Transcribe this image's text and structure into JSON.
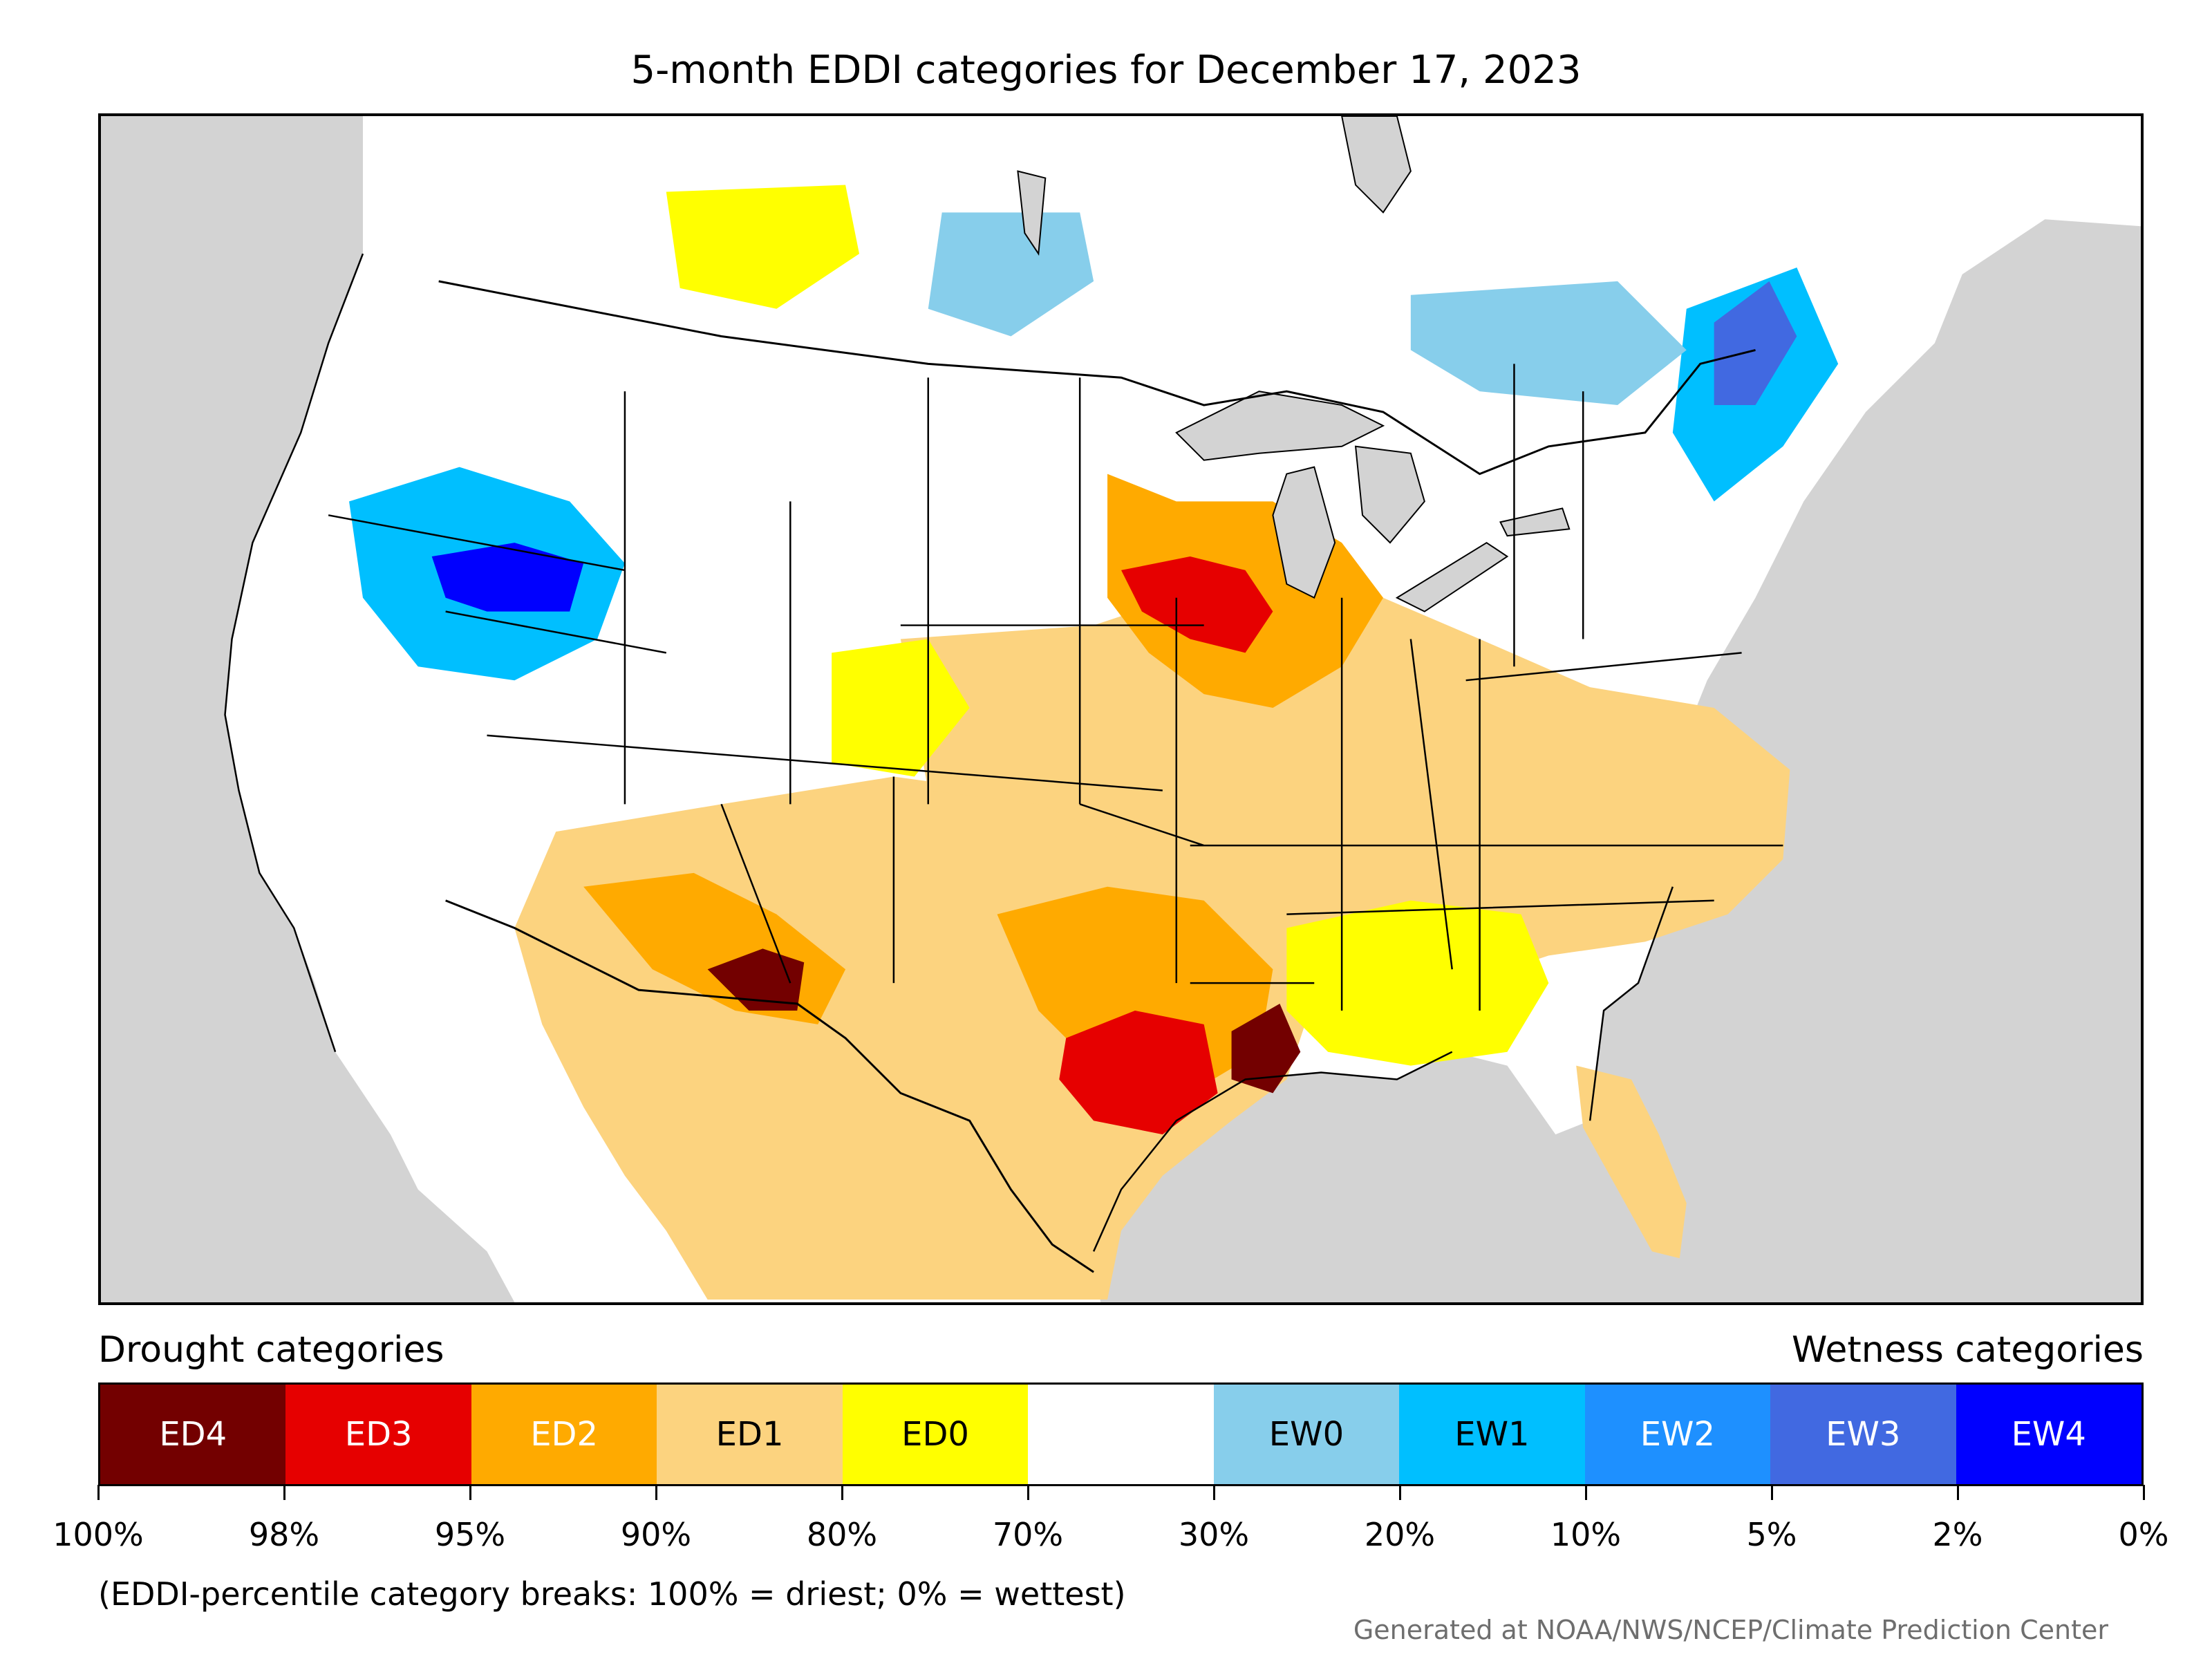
{
  "title": "5-month EDDI categories for December 17, 2023",
  "map": {
    "region": "Contiguous United States with parts of Canada and Mexico",
    "colors": {
      "background": "#d3d3d3",
      "land_neutral": "#ffffff",
      "water": "#d3d3d3",
      "borders": "#000000"
    }
  },
  "legend": {
    "left_heading": "Drought categories",
    "right_heading": "Wetness categories",
    "categories": [
      {
        "label": "ED4",
        "color": "#730000",
        "text_color": "#ffffff"
      },
      {
        "label": "ED3",
        "color": "#e60000",
        "text_color": "#ffffff"
      },
      {
        "label": "ED2",
        "color": "#ffaa00",
        "text_color": "#ffffff"
      },
      {
        "label": "ED1",
        "color": "#fcd37f",
        "text_color": "#000000"
      },
      {
        "label": "ED0",
        "color": "#ffff00",
        "text_color": "#000000"
      },
      {
        "label": "",
        "color": "#ffffff",
        "text_color": "#000000"
      },
      {
        "label": "EW0",
        "color": "#87ceeb",
        "text_color": "#000000"
      },
      {
        "label": "EW1",
        "color": "#00bfff",
        "text_color": "#000000"
      },
      {
        "label": "EW2",
        "color": "#1e90ff",
        "text_color": "#ffffff"
      },
      {
        "label": "EW3",
        "color": "#4169e1",
        "text_color": "#ffffff"
      },
      {
        "label": "EW4",
        "color": "#0000ff",
        "text_color": "#ffffff"
      }
    ],
    "breaks": [
      "100%",
      "98%",
      "95%",
      "90%",
      "80%",
      "70%",
      "30%",
      "20%",
      "10%",
      "5%",
      "2%",
      "0%"
    ]
  },
  "note": "(EDDI-percentile category breaks: 100% = driest; 0% = wettest)",
  "credit": "Generated at NOAA/NWS/NCEP/Climate Prediction Center"
}
